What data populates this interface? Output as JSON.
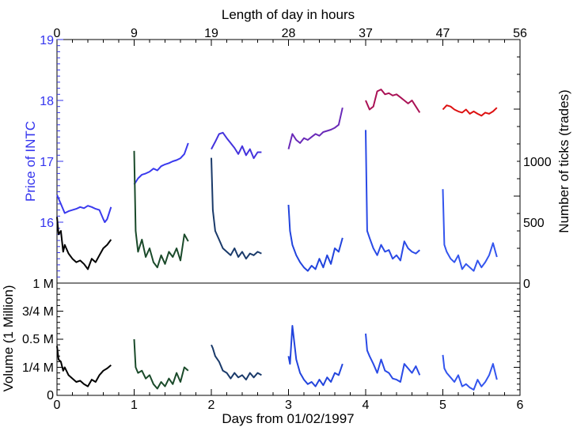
{
  "chart_data": [
    {
      "type": "line",
      "top_axis": {
        "label": "Length of day in hours",
        "ticks": [
          "0",
          "9",
          "19",
          "28",
          "37",
          "47",
          "56"
        ]
      },
      "left_axis": {
        "label": "Price of INTC",
        "ticks": [
          "19",
          "18",
          "17",
          "16"
        ],
        "ylim": [
          15.0,
          19.0
        ],
        "color": "#3333ee"
      },
      "right_axis": {
        "label": "Number of ticks (trades)",
        "ticks": [
          "1000",
          "500",
          "0"
        ],
        "ylim": [
          0,
          1400
        ]
      },
      "xlim": [
        0,
        6
      ],
      "price_series": [
        {
          "day": 0,
          "color": "#3a3aee",
          "x": [
            0.0,
            0.05,
            0.1,
            0.15,
            0.2,
            0.25,
            0.3,
            0.35,
            0.4,
            0.45,
            0.5,
            0.55,
            0.6,
            0.62,
            0.65,
            0.7
          ],
          "y": [
            16.45,
            16.3,
            16.15,
            16.18,
            16.2,
            16.22,
            16.25,
            16.23,
            16.27,
            16.25,
            16.22,
            16.2,
            16.05,
            16.0,
            16.05,
            16.25
          ]
        },
        {
          "day": 1,
          "color": "#3a3aee",
          "x": [
            1.0,
            1.05,
            1.1,
            1.15,
            1.2,
            1.25,
            1.3,
            1.35,
            1.4,
            1.45,
            1.5,
            1.55,
            1.6,
            1.65,
            1.7
          ],
          "y": [
            16.62,
            16.72,
            16.78,
            16.8,
            16.83,
            16.88,
            16.85,
            16.92,
            16.95,
            16.97,
            17.0,
            17.02,
            17.05,
            17.12,
            17.3
          ]
        },
        {
          "day": 2,
          "color": "#4433dd",
          "x": [
            2.0,
            2.05,
            2.1,
            2.15,
            2.2,
            2.25,
            2.3,
            2.35,
            2.4,
            2.45,
            2.5,
            2.55,
            2.6,
            2.65
          ],
          "y": [
            17.2,
            17.32,
            17.45,
            17.47,
            17.38,
            17.3,
            17.22,
            17.12,
            17.25,
            17.1,
            17.2,
            17.05,
            17.15,
            17.15
          ]
        },
        {
          "day": 3,
          "color": "#6a2ab8",
          "x": [
            3.0,
            3.05,
            3.1,
            3.15,
            3.2,
            3.25,
            3.3,
            3.35,
            3.4,
            3.45,
            3.5,
            3.55,
            3.6,
            3.65,
            3.7
          ],
          "y": [
            17.2,
            17.45,
            17.35,
            17.3,
            17.38,
            17.35,
            17.4,
            17.45,
            17.42,
            17.48,
            17.5,
            17.52,
            17.55,
            17.6,
            17.88
          ]
        },
        {
          "day": 4,
          "color": "#aa1155",
          "x": [
            4.0,
            4.05,
            4.1,
            4.15,
            4.2,
            4.25,
            4.3,
            4.35,
            4.4,
            4.45,
            4.5,
            4.55,
            4.6,
            4.65,
            4.7
          ],
          "y": [
            18.0,
            17.85,
            17.9,
            18.15,
            18.18,
            18.1,
            18.12,
            18.08,
            18.1,
            18.05,
            18.0,
            17.95,
            18.0,
            17.9,
            17.8
          ]
        },
        {
          "day": 5,
          "color": "#dd1111",
          "x": [
            5.0,
            5.05,
            5.1,
            5.15,
            5.2,
            5.25,
            5.3,
            5.35,
            5.4,
            5.45,
            5.5,
            5.55,
            5.6,
            5.65,
            5.7
          ],
          "y": [
            17.85,
            17.92,
            17.9,
            17.85,
            17.82,
            17.8,
            17.85,
            17.78,
            17.82,
            17.78,
            17.75,
            17.8,
            17.78,
            17.82,
            17.88
          ]
        }
      ],
      "ticks_series": [
        {
          "day": 0,
          "color": "#000000",
          "x": [
            0.0,
            0.02,
            0.05,
            0.08,
            0.1,
            0.15,
            0.2,
            0.25,
            0.3,
            0.35,
            0.4,
            0.45,
            0.5,
            0.55,
            0.6,
            0.65,
            0.7
          ],
          "y": [
            380,
            280,
            300,
            180,
            220,
            170,
            140,
            120,
            130,
            110,
            80,
            140,
            120,
            160,
            200,
            220,
            250
          ]
        },
        {
          "day": 1,
          "color": "#1a4a2a",
          "x": [
            1.0,
            1.02,
            1.05,
            1.1,
            1.15,
            1.2,
            1.25,
            1.3,
            1.35,
            1.4,
            1.45,
            1.5,
            1.55,
            1.6,
            1.65,
            1.7
          ],
          "y": [
            760,
            300,
            180,
            250,
            150,
            200,
            120,
            90,
            160,
            110,
            180,
            150,
            200,
            130,
            280,
            240
          ]
        },
        {
          "day": 2,
          "color": "#1a3a6a",
          "x": [
            2.0,
            2.02,
            2.05,
            2.1,
            2.15,
            2.2,
            2.25,
            2.3,
            2.35,
            2.4,
            2.45,
            2.5,
            2.55,
            2.6,
            2.65
          ],
          "y": [
            720,
            420,
            300,
            250,
            200,
            180,
            160,
            200,
            150,
            180,
            140,
            170,
            160,
            180,
            170
          ]
        },
        {
          "day": 3,
          "color": "#2244dd",
          "x": [
            3.0,
            3.02,
            3.05,
            3.1,
            3.15,
            3.2,
            3.25,
            3.3,
            3.35,
            3.4,
            3.45,
            3.5,
            3.55,
            3.6,
            3.65,
            3.7
          ],
          "y": [
            450,
            300,
            220,
            160,
            120,
            90,
            70,
            100,
            80,
            140,
            90,
            160,
            110,
            200,
            180,
            260
          ]
        },
        {
          "day": 4,
          "color": "#2a4ae6",
          "x": [
            4.0,
            4.02,
            4.05,
            4.1,
            4.15,
            4.2,
            4.25,
            4.3,
            4.35,
            4.4,
            4.45,
            4.5,
            4.55,
            4.6,
            4.65,
            4.7
          ],
          "y": [
            880,
            300,
            260,
            200,
            160,
            220,
            180,
            190,
            140,
            160,
            130,
            240,
            200,
            180,
            170,
            190
          ]
        },
        {
          "day": 5,
          "color": "#3355ee",
          "x": [
            5.0,
            5.02,
            5.05,
            5.1,
            5.15,
            5.2,
            5.25,
            5.3,
            5.35,
            5.4,
            5.45,
            5.5,
            5.55,
            5.6,
            5.65,
            5.7
          ],
          "y": [
            540,
            220,
            180,
            140,
            120,
            160,
            80,
            110,
            90,
            70,
            130,
            90,
            120,
            160,
            230,
            150
          ]
        }
      ]
    },
    {
      "type": "line",
      "left_axis": {
        "label": "Volume (1 Million)",
        "ticks": [
          "1 M",
          "3/4 M",
          "0.5 M",
          "1/4 M",
          "0"
        ],
        "ylim": [
          0,
          1.0
        ]
      },
      "x_axis": {
        "label": "Days from 01/02/1997",
        "ticks": [
          "0",
          "1",
          "2",
          "3",
          "4",
          "5",
          "6"
        ]
      },
      "xlim": [
        0,
        6
      ],
      "volume_series": [
        {
          "day": 0,
          "color": "#000000",
          "x": [
            0.0,
            0.02,
            0.05,
            0.08,
            0.1,
            0.15,
            0.2,
            0.25,
            0.3,
            0.35,
            0.4,
            0.45,
            0.5,
            0.55,
            0.6,
            0.65,
            0.7
          ],
          "y": [
            0.44,
            0.32,
            0.3,
            0.22,
            0.25,
            0.18,
            0.15,
            0.12,
            0.13,
            0.1,
            0.08,
            0.14,
            0.12,
            0.18,
            0.22,
            0.24,
            0.27
          ]
        },
        {
          "day": 1,
          "color": "#1a4a2a",
          "x": [
            1.0,
            1.02,
            1.05,
            1.1,
            1.15,
            1.2,
            1.25,
            1.3,
            1.35,
            1.4,
            1.45,
            1.5,
            1.55,
            1.6,
            1.65,
            1.7
          ],
          "y": [
            0.5,
            0.25,
            0.2,
            0.22,
            0.15,
            0.18,
            0.1,
            0.06,
            0.12,
            0.08,
            0.15,
            0.1,
            0.2,
            0.12,
            0.25,
            0.22
          ]
        },
        {
          "day": 2,
          "color": "#1a3a6a",
          "x": [
            2.0,
            2.02,
            2.05,
            2.1,
            2.15,
            2.2,
            2.25,
            2.3,
            2.35,
            2.4,
            2.45,
            2.5,
            2.55,
            2.6,
            2.65
          ],
          "y": [
            0.45,
            0.42,
            0.35,
            0.3,
            0.22,
            0.2,
            0.15,
            0.2,
            0.16,
            0.18,
            0.14,
            0.2,
            0.16,
            0.2,
            0.18
          ]
        },
        {
          "day": 3,
          "color": "#2244dd",
          "x": [
            3.0,
            3.02,
            3.05,
            3.1,
            3.15,
            3.2,
            3.25,
            3.3,
            3.35,
            3.4,
            3.45,
            3.5,
            3.55,
            3.6,
            3.65,
            3.7
          ],
          "y": [
            0.35,
            0.28,
            0.62,
            0.32,
            0.2,
            0.14,
            0.1,
            0.12,
            0.08,
            0.14,
            0.09,
            0.16,
            0.12,
            0.2,
            0.18,
            0.28
          ]
        },
        {
          "day": 4,
          "color": "#2a4ae6",
          "x": [
            4.0,
            4.02,
            4.05,
            4.1,
            4.15,
            4.2,
            4.25,
            4.3,
            4.35,
            4.4,
            4.45,
            4.5,
            4.55,
            4.6,
            4.65,
            4.7
          ],
          "y": [
            0.55,
            0.4,
            0.35,
            0.28,
            0.2,
            0.32,
            0.22,
            0.2,
            0.15,
            0.14,
            0.12,
            0.28,
            0.24,
            0.2,
            0.26,
            0.18
          ]
        },
        {
          "day": 5,
          "color": "#3355ee",
          "x": [
            5.0,
            5.02,
            5.05,
            5.1,
            5.15,
            5.2,
            5.25,
            5.3,
            5.35,
            5.4,
            5.45,
            5.5,
            5.55,
            5.6,
            5.65,
            5.7
          ],
          "y": [
            0.36,
            0.24,
            0.2,
            0.16,
            0.12,
            0.18,
            0.08,
            0.1,
            0.07,
            0.05,
            0.14,
            0.08,
            0.12,
            0.18,
            0.28,
            0.14
          ]
        }
      ]
    }
  ]
}
